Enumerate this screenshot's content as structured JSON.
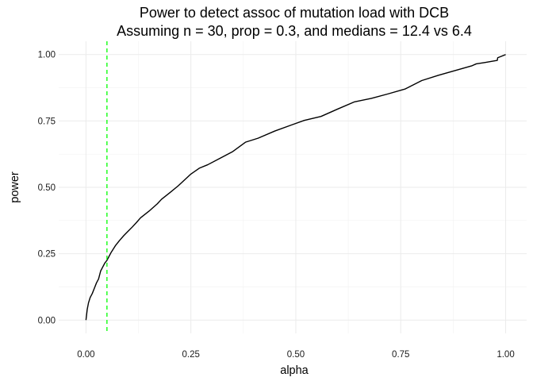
{
  "chart_data": {
    "type": "line",
    "title": "Power to detect assoc of mutation load with DCB",
    "subtitle": "Assuming n = 30, prop = 0.3, and medians = 12.4 vs 6.4",
    "xlabel": "alpha",
    "ylabel": "power",
    "xlim": [
      -0.065,
      1.05
    ],
    "ylim": [
      -0.05,
      1.05
    ],
    "x_ticks": [
      0.0,
      0.25,
      0.5,
      0.75,
      1.0
    ],
    "x_tick_labels": [
      "0.00",
      "0.25",
      "0.50",
      "0.75",
      "1.00"
    ],
    "y_ticks": [
      0.0,
      0.25,
      0.5,
      0.75,
      1.0
    ],
    "y_tick_labels": [
      "0.00",
      "0.25",
      "0.50",
      "0.75",
      "1.00"
    ],
    "grid": true,
    "series": [
      {
        "color": "#000000",
        "x": [
          0.0,
          0.003,
          0.006,
          0.01,
          0.015,
          0.02,
          0.025,
          0.03,
          0.035,
          0.04,
          0.045,
          0.05,
          0.055,
          0.06,
          0.07,
          0.08,
          0.09,
          0.1,
          0.11,
          0.12,
          0.13,
          0.15,
          0.17,
          0.18,
          0.2,
          0.22,
          0.25,
          0.27,
          0.29,
          0.32,
          0.35,
          0.38,
          0.41,
          0.45,
          0.49,
          0.52,
          0.56,
          0.6,
          0.64,
          0.68,
          0.72,
          0.76,
          0.8,
          0.84,
          0.88,
          0.92,
          0.93,
          0.95,
          0.98,
          0.981,
          1.0
        ],
        "y": [
          0.0,
          0.04,
          0.065,
          0.085,
          0.1,
          0.12,
          0.14,
          0.155,
          0.185,
          0.2,
          0.215,
          0.225,
          0.24,
          0.255,
          0.28,
          0.3,
          0.318,
          0.334,
          0.35,
          0.367,
          0.385,
          0.41,
          0.438,
          0.455,
          0.48,
          0.506,
          0.55,
          0.572,
          0.585,
          0.61,
          0.635,
          0.67,
          0.685,
          0.712,
          0.735,
          0.752,
          0.767,
          0.795,
          0.822,
          0.835,
          0.852,
          0.87,
          0.902,
          0.922,
          0.94,
          0.958,
          0.965,
          0.97,
          0.978,
          0.988,
          1.0
        ]
      },
      {
        "color": "#00ff00",
        "dashed": true,
        "vline_x": 0.05
      }
    ]
  }
}
